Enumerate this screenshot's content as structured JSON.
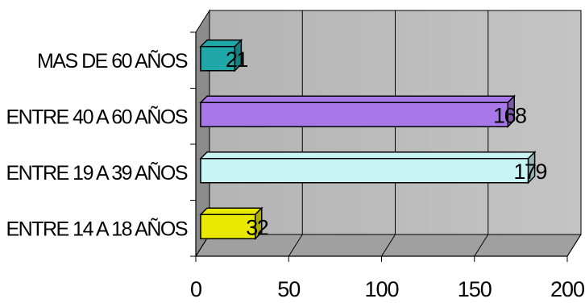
{
  "chart_data": {
    "type": "bar",
    "orientation": "horizontal",
    "style": "3d",
    "title": "",
    "xlabel": "",
    "ylabel": "",
    "categories": [
      "ENTRE 14 A 18 AÑOS",
      "ENTRE 19 A 39 AÑOS",
      "ENTRE 40 A 60 AÑOS",
      "MAS DE 60 AÑOS"
    ],
    "values": [
      32,
      179,
      168,
      21
    ],
    "bar_colors": [
      "#e8e800",
      "#c8f4f4",
      "#a878e8",
      "#20a8a8"
    ],
    "xlim": [
      0,
      200
    ],
    "xticks": [
      0,
      50,
      100,
      150,
      200
    ],
    "tick_labels": [
      "0",
      "50",
      "100",
      "150",
      "200"
    ],
    "grid": true,
    "wall_color": "#c0c0c0",
    "legend": "none"
  }
}
